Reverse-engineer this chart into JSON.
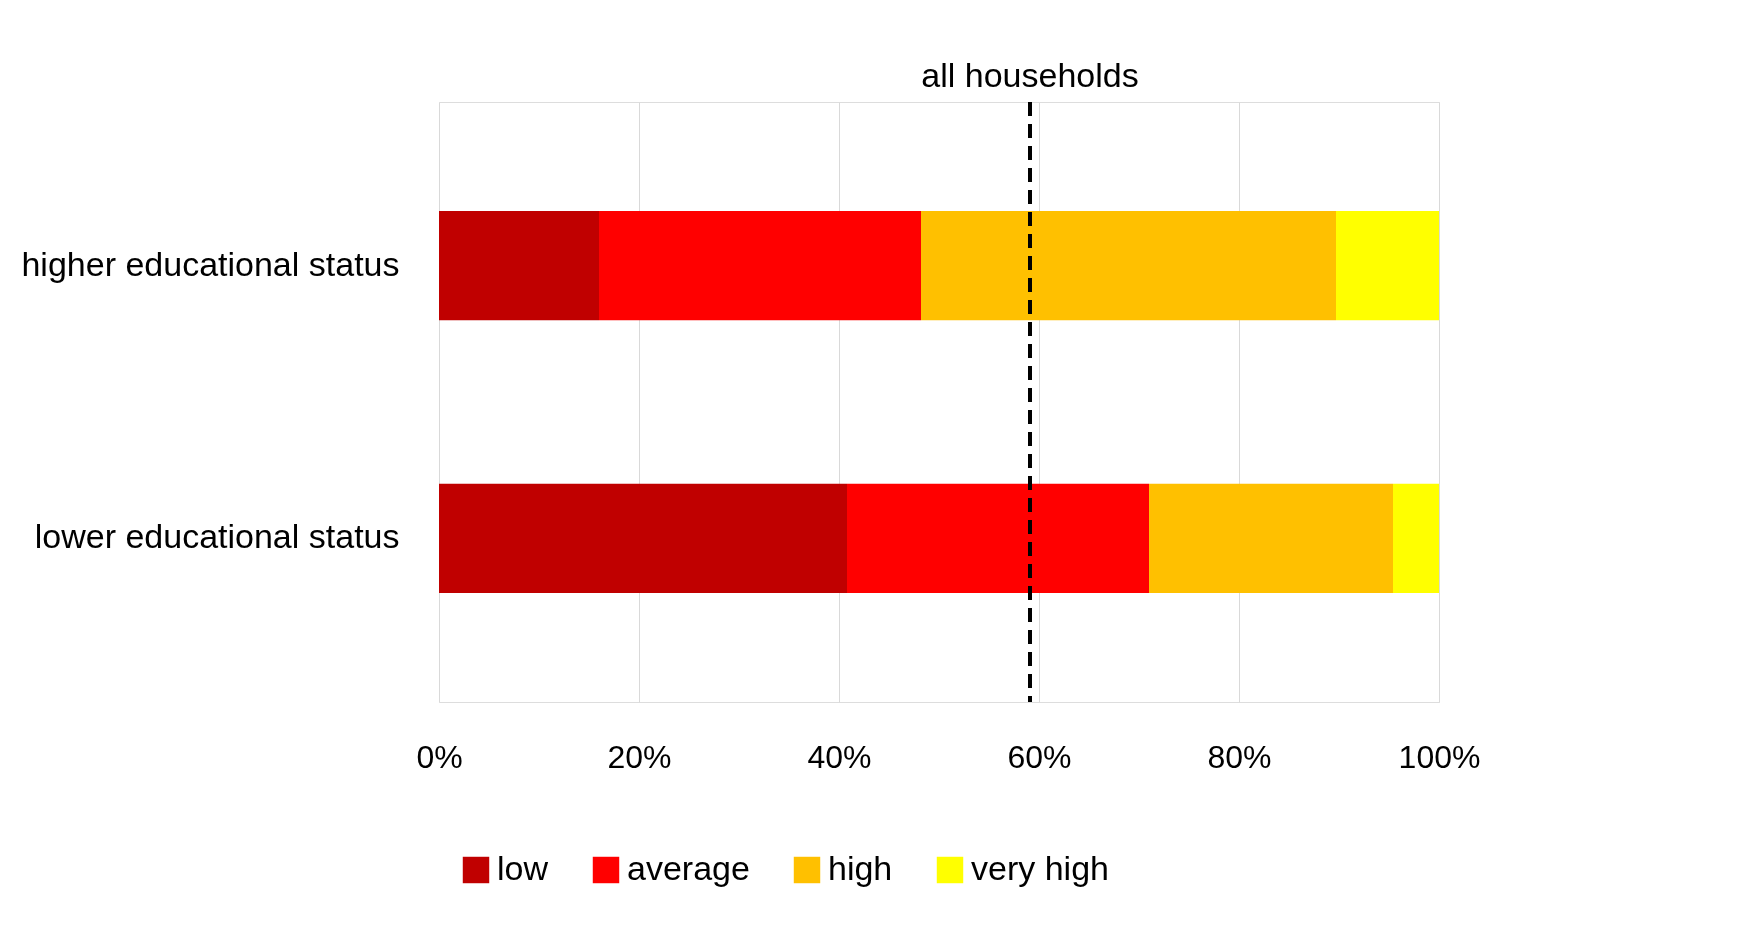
{
  "chart_data": {
    "type": "bar",
    "orientation": "horizontal",
    "stacked": true,
    "categories": [
      "higher educational status",
      "lower educational status"
    ],
    "series": [
      {
        "name": "low",
        "color": "#c00000",
        "values": [
          16.0,
          40.8
        ]
      },
      {
        "name": "average",
        "color": "#ff0000",
        "values": [
          32.2,
          30.2
        ]
      },
      {
        "name": "high",
        "color": "#ffc000",
        "values": [
          41.5,
          24.4
        ]
      },
      {
        "name": "very high",
        "color": "#ffff00",
        "values": [
          10.3,
          4.6
        ]
      }
    ],
    "xlim": [
      0,
      100
    ],
    "xticks": [
      {
        "value": 0,
        "label": "0%"
      },
      {
        "value": 20,
        "label": "20%"
      },
      {
        "value": 40,
        "label": "40%"
      },
      {
        "value": 60,
        "label": "60%"
      },
      {
        "value": 80,
        "label": "80%"
      },
      {
        "value": 100,
        "label": "100%"
      }
    ],
    "ref_lines": [
      {
        "axis": "x",
        "value": 59.1,
        "label": "all households",
        "color": "#000000",
        "line_style": "dashed"
      }
    ],
    "grid": "x",
    "legend": "bottom"
  }
}
